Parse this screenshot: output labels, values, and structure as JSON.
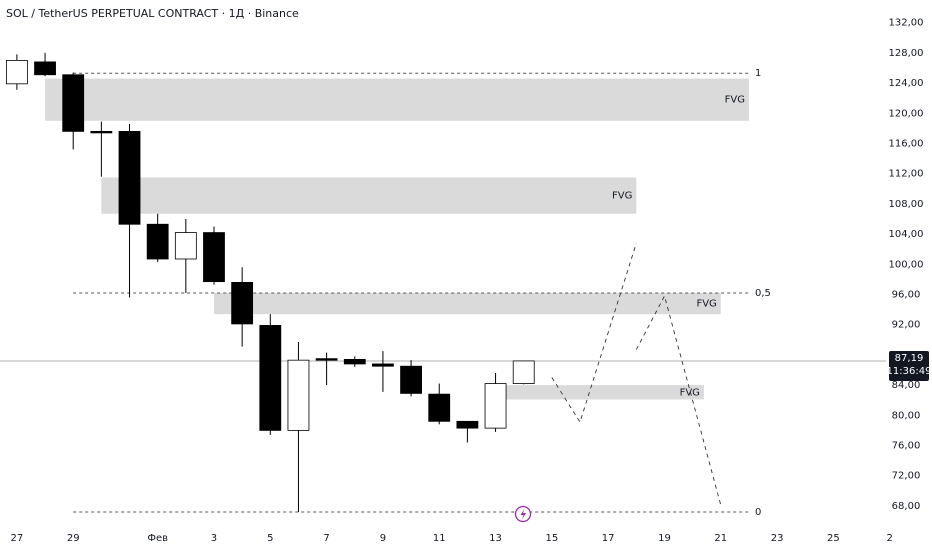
{
  "chart_data": {
    "type": "candlestick",
    "title": "SOL / TetherUS PERPETUAL CONTRACT · 1Д · Binance",
    "x": [
      0,
      1,
      2,
      3,
      4,
      5,
      6,
      7,
      8,
      9,
      10,
      11,
      12,
      13,
      14,
      15,
      16,
      17,
      18
    ],
    "open": [
      123.9,
      126.8,
      125.1,
      117.6,
      117.6,
      105.3,
      100.7,
      104.2,
      97.6,
      91.9,
      78.0,
      87.5,
      87.4,
      86.8,
      86.5,
      82.8,
      79.2,
      78.3,
      84.2
    ],
    "high": [
      127.8,
      128.0,
      125.4,
      118.9,
      118.6,
      106.7,
      106.0,
      105.0,
      99.6,
      93.4,
      89.7,
      88.3,
      87.8,
      88.5,
      87.3,
      84.2,
      79.2,
      85.6,
      87.2
    ],
    "low": [
      123.1,
      124.9,
      115.2,
      111.6,
      95.6,
      100.3,
      96.2,
      97.3,
      89.1,
      77.4,
      67.2,
      84.0,
      86.4,
      83.1,
      82.5,
      78.8,
      76.4,
      77.8,
      84.1
    ],
    "close": [
      127.0,
      125.1,
      117.6,
      117.4,
      105.3,
      100.7,
      104.2,
      97.7,
      92.1,
      78.0,
      87.3,
      87.3,
      86.8,
      86.5,
      82.9,
      79.2,
      78.3,
      84.2,
      87.2
    ],
    "up_color": "#ffffff",
    "down_color": "#000000",
    "xlim": [
      -0.6,
      31.4
    ],
    "ylim": [
      66,
      135
    ],
    "xticks": [
      {
        "value": 0,
        "label": "27"
      },
      {
        "value": 2,
        "label": "29"
      },
      {
        "value": 5,
        "label": "Фев"
      },
      {
        "value": 7,
        "label": "3"
      },
      {
        "value": 9,
        "label": "5"
      },
      {
        "value": 11,
        "label": "7"
      },
      {
        "value": 13,
        "label": "9"
      },
      {
        "value": 15,
        "label": "11"
      },
      {
        "value": 17,
        "label": "13"
      },
      {
        "value": 19,
        "label": "15"
      },
      {
        "value": 21,
        "label": "17"
      },
      {
        "value": 23,
        "label": "19"
      },
      {
        "value": 25,
        "label": "21"
      },
      {
        "value": 27,
        "label": "23"
      },
      {
        "value": 29,
        "label": "25"
      },
      {
        "value": 31,
        "label": "2"
      }
    ],
    "yticks": [
      {
        "value": 132,
        "label": "132,00"
      },
      {
        "value": 128,
        "label": "128,00"
      },
      {
        "value": 124,
        "label": "124,00"
      },
      {
        "value": 120,
        "label": "120,00"
      },
      {
        "value": 116,
        "label": "116,00"
      },
      {
        "value": 112,
        "label": "112,00"
      },
      {
        "value": 108,
        "label": "108,00"
      },
      {
        "value": 104,
        "label": "104,00"
      },
      {
        "value": 100,
        "label": "100,00"
      },
      {
        "value": 96,
        "label": "96,00"
      },
      {
        "value": 92,
        "label": "92,00"
      },
      {
        "value": 88,
        "label": "88,00"
      },
      {
        "value": 84,
        "label": "84,00"
      },
      {
        "value": 80,
        "label": "80,00"
      },
      {
        "value": 76,
        "label": "76,00"
      },
      {
        "value": 72,
        "label": "72,00"
      },
      {
        "value": 68,
        "label": "68,00"
      }
    ],
    "zones": [
      {
        "label": "FVG",
        "x": [
          1,
          26
        ],
        "y": [
          124.6,
          119.0
        ]
      },
      {
        "label": "FVG",
        "x": [
          3,
          22
        ],
        "y": [
          111.5,
          106.7
        ]
      },
      {
        "label": "FVG",
        "x": [
          7,
          25
        ],
        "y": [
          96.2,
          93.4
        ]
      },
      {
        "label": "FVG",
        "x": [
          17,
          24.4
        ],
        "y": [
          84.0,
          82.1
        ]
      }
    ],
    "zone_color": "#d3d3d3",
    "levels": [
      {
        "label": "1",
        "value": 125.3
      },
      {
        "label": "0,5",
        "value": 96.2
      },
      {
        "label": "0",
        "value": 67.2
      }
    ],
    "levels_x": [
      2,
      26
    ],
    "projection": [
      {
        "x": [
          19,
          20,
          22
        ],
        "values": [
          85.0,
          79.1,
          102.8
        ]
      },
      {
        "x": [
          22,
          23,
          25
        ],
        "values": [
          88.7,
          95.8,
          68.1
        ]
      }
    ],
    "last_price": {
      "value": 87.19,
      "label": "87,19"
    },
    "timer": "11:36:49"
  }
}
